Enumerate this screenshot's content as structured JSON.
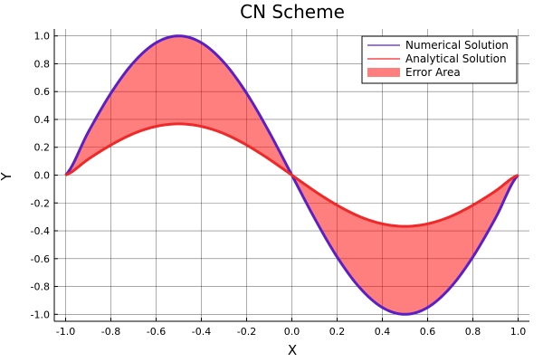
{
  "chart_data": {
    "type": "area",
    "title": "CN Scheme",
    "xlabel": "X",
    "ylabel": "Y",
    "xlim": [
      -1.05,
      1.05
    ],
    "ylim": [
      -1.05,
      1.05
    ],
    "x_ticks": [
      "-1.0",
      "-0.8",
      "-0.6",
      "-0.4",
      "-0.2",
      "0.0",
      "0.2",
      "0.4",
      "0.6",
      "0.8",
      "1.0"
    ],
    "y_ticks": [
      "1.0",
      "0.8",
      "0.6",
      "0.4",
      "0.2",
      "0.0",
      "-0.2",
      "-0.4",
      "-0.6",
      "-0.8",
      "-1.0"
    ],
    "grid": true,
    "legend_position": "top-right",
    "x": [
      -1.0,
      -0.9,
      -0.8,
      -0.7,
      -0.6,
      -0.5,
      -0.4,
      -0.3,
      -0.2,
      -0.1,
      0.0,
      0.1,
      0.2,
      0.3,
      0.4,
      0.5,
      0.6,
      0.7,
      0.8,
      0.9,
      1.0
    ],
    "series": [
      {
        "name": "Numerical Solution",
        "color": "#5a20c8",
        "values": [
          0.0,
          0.309,
          0.588,
          0.809,
          0.951,
          1.0,
          0.951,
          0.809,
          0.588,
          0.309,
          0.0,
          -0.309,
          -0.588,
          -0.809,
          -0.951,
          -1.0,
          -0.951,
          -0.809,
          -0.588,
          -0.309,
          0.0
        ]
      },
      {
        "name": "Analytical Solution",
        "color": "#f02828",
        "values": [
          0.0,
          0.114,
          0.216,
          0.298,
          0.35,
          0.368,
          0.35,
          0.298,
          0.216,
          0.114,
          0.0,
          -0.114,
          -0.216,
          -0.298,
          -0.35,
          -0.368,
          -0.35,
          -0.298,
          -0.216,
          -0.114,
          0.0
        ]
      }
    ],
    "fill": {
      "name": "Error Area",
      "color": "#ff0000",
      "opacity": 0.5,
      "between": [
        "Numerical Solution",
        "Analytical Solution"
      ]
    }
  }
}
